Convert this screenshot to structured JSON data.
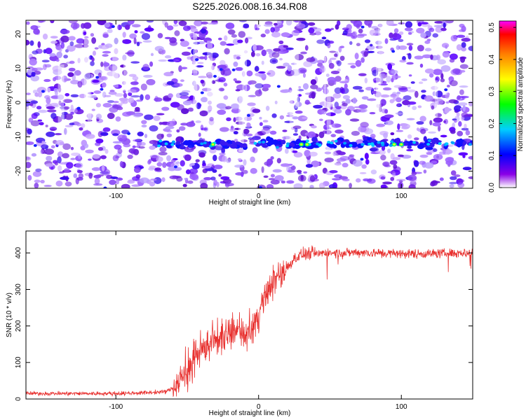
{
  "title": "S225.2026.008.16.34.R08",
  "chart_data": [
    {
      "type": "heatmap",
      "xlabel": "Height of straight line (km)",
      "ylabel": "Frequency (Hz)",
      "xlim": [
        -163,
        150
      ],
      "ylim": [
        -25,
        24
      ],
      "x_ticks": [
        -100,
        0,
        100
      ],
      "y_ticks": [
        -20,
        -10,
        0,
        10,
        20
      ],
      "colorbar": {
        "label": "Normalized spectral amplitude",
        "range": [
          0,
          0.52
        ],
        "ticks": [
          0.0,
          0.1,
          0.2,
          0.3,
          0.4,
          0.5
        ],
        "colors": [
          "#ffffff",
          "#8a00e6",
          "#0000ff",
          "#00d0ff",
          "#00ff00",
          "#ffff00",
          "#ff8000",
          "#ff0000",
          "#ff00ff"
        ]
      },
      "features": [
        {
          "x_range": [
            -70,
            150
          ],
          "frequency_hz": -12,
          "normalized_amplitude_max": 0.35
        }
      ]
    },
    {
      "type": "line",
      "xlabel": "Height of straight line (km)",
      "ylabel": "SNR (10 * v/v)",
      "xlim": [
        -163,
        150
      ],
      "ylim": [
        0,
        460
      ],
      "x_ticks": [
        -100,
        0,
        100
      ],
      "y_ticks": [
        0,
        100,
        200,
        300,
        400
      ],
      "line_color": "#e8312f",
      "series": [
        {
          "x": [
            -163,
            -140,
            -120,
            -100,
            -80,
            -65,
            -60,
            -55,
            -50,
            -45,
            -40,
            -35,
            -30,
            -25,
            -20,
            -15,
            -10,
            -5,
            0,
            5,
            10,
            15,
            20,
            25,
            30,
            40,
            50,
            60,
            70,
            80,
            100,
            120,
            140,
            150
          ],
          "values": [
            15,
            15,
            15,
            15,
            17,
            20,
            30,
            55,
            80,
            110,
            130,
            150,
            160,
            170,
            180,
            190,
            160,
            185,
            230,
            280,
            320,
            340,
            360,
            385,
            395,
            400,
            400,
            400,
            402,
            400,
            398,
            398,
            400,
            400
          ]
        }
      ]
    }
  ]
}
